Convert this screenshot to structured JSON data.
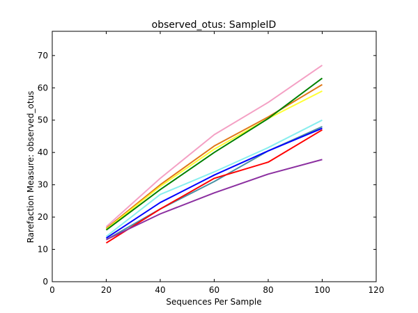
{
  "chart_data": {
    "type": "line",
    "title": "observed_otus: SampleID",
    "xlabel": "Sequences Per Sample",
    "ylabel": "Rarefaction Measure: observed_otus",
    "xlim": [
      0,
      120
    ],
    "ylim": [
      0,
      77.5
    ],
    "xticks": [
      0,
      20,
      40,
      60,
      80,
      100,
      120
    ],
    "yticks": [
      0,
      10,
      20,
      30,
      40,
      50,
      60,
      70
    ],
    "grid": false,
    "legend": "none",
    "x": [
      20,
      40,
      60,
      80,
      100
    ],
    "series": [
      {
        "color": "#f4a0c4",
        "values": [
          17.0,
          32.0,
          45.5,
          55.5,
          67.0
        ]
      },
      {
        "color": "#e07818",
        "values": [
          16.5,
          30.0,
          42.0,
          51.0,
          61.0
        ]
      },
      {
        "color": "#ffff33",
        "values": [
          16.2,
          29.5,
          41.0,
          50.5,
          59.0
        ]
      },
      {
        "color": "#008000",
        "values": [
          16.0,
          28.5,
          40.0,
          50.5,
          63.0
        ]
      },
      {
        "color": "#88eeee",
        "values": [
          14.0,
          27.0,
          34.0,
          41.5,
          50.0
        ]
      },
      {
        "color": "#4a90a4",
        "values": [
          13.0,
          22.5,
          31.0,
          40.5,
          48.0
        ]
      },
      {
        "color": "#0000ff",
        "values": [
          13.5,
          24.5,
          33.0,
          40.5,
          47.5
        ]
      },
      {
        "color": "#ff0000",
        "values": [
          12.0,
          22.5,
          32.0,
          37.0,
          47.0
        ]
      },
      {
        "color": "#8b2fa0",
        "values": [
          13.0,
          21.0,
          27.5,
          33.3,
          37.8
        ]
      }
    ]
  }
}
